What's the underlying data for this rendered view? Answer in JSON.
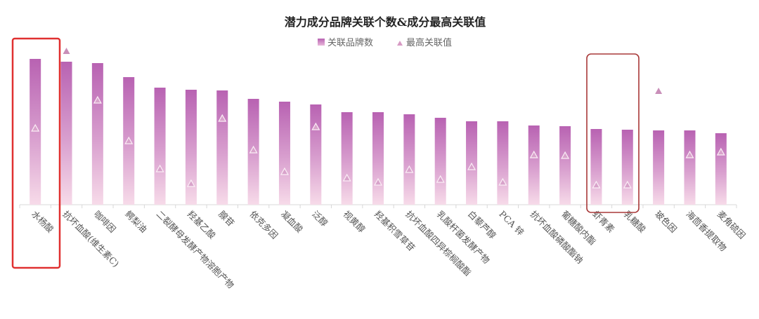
{
  "chart_data": {
    "type": "bar",
    "title": "潜力成分品牌关联个数&成分最高关联值",
    "legend_position": "top",
    "grid": false,
    "y_axis_labels_shown": false,
    "categories": [
      "水杨酸",
      "抗坏血酸(维生素C)",
      "咖啡因",
      "鳄梨油",
      "二裂酵母发酵产物溶胞产物",
      "羟基乙酸",
      "腺苷",
      "依克多因",
      "凝血酸",
      "泛醇",
      "视黄醇",
      "羟基积雪草苷",
      "抗坏血酸四异棕榈酸酯",
      "乳酸杆菌发酵产物",
      "白藜芦醇",
      "PCA 锌",
      "抗坏血酸磷酸酯钠",
      "葡糖酸内酯",
      "虾青素",
      "乳糖酸",
      "玻色因",
      "海茴香提取物",
      "麦角硫因"
    ],
    "ylim": [
      0,
      240
    ],
    "series": [
      {
        "name": "关联品牌数",
        "type": "bar",
        "color": "#b862b2",
        "values": [
          208,
          204,
          202,
          182,
          167,
          164,
          163,
          151,
          147,
          143,
          132,
          132,
          129,
          124,
          119,
          119,
          113,
          112,
          108,
          107,
          106,
          106,
          102
        ]
      },
      {
        "name": "最高关联值",
        "type": "scatter",
        "marker": "triangle",
        "color": "#c98fb9",
        "values": [
          109,
          219,
          149,
          91,
          51,
          30,
          123,
          78,
          47,
          111,
          38,
          32,
          50,
          36,
          54,
          32,
          71,
          70,
          28,
          28,
          162,
          71,
          75
        ]
      }
    ],
    "highlighted_categories": [
      "水杨酸",
      "虾青素",
      "乳糖酸"
    ],
    "highlight_color": "#d23a3a"
  }
}
